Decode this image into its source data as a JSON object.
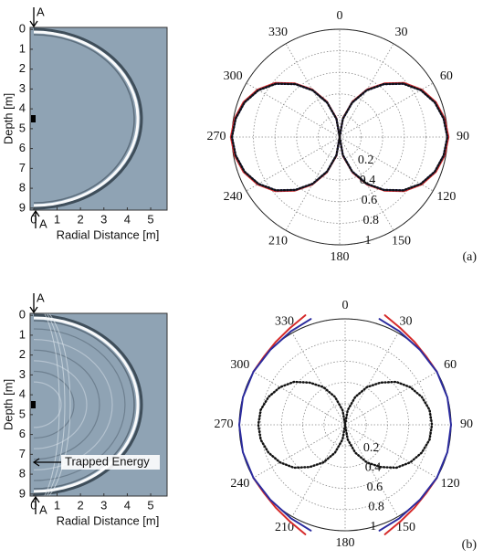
{
  "chart_data": [
    {
      "type": "image",
      "xlabel": "Radial Distance [m]",
      "ylabel": "Depth [m]",
      "xlim": [
        -0.15,
        5.7
      ],
      "ylim": [
        -0.1,
        9.1
      ],
      "xticks": [
        0,
        1,
        2,
        3,
        4,
        5
      ],
      "yticks": [
        0,
        1,
        2,
        3,
        4,
        5,
        6,
        7,
        8,
        9
      ],
      "markers": [
        "A",
        "A"
      ]
    },
    {
      "type": "polar",
      "panel_label": "(a)",
      "rlim": [
        0,
        1
      ],
      "rticks": [
        0.2,
        0.4,
        0.6,
        0.8,
        1
      ],
      "theta_ticks": [
        0,
        30,
        60,
        90,
        120,
        150,
        180,
        210,
        240,
        270,
        300,
        330
      ],
      "grid": true,
      "series": [
        {
          "color": "#d62b2b",
          "style": "solid",
          "theta": [
            0,
            10,
            20,
            30,
            40,
            50,
            60,
            70,
            80,
            90,
            100,
            110,
            120,
            130,
            140,
            150,
            160,
            170,
            180,
            190,
            200,
            210,
            220,
            230,
            240,
            250,
            260,
            270,
            280,
            290,
            300,
            310,
            320,
            330,
            340,
            350,
            360
          ],
          "r": [
            0,
            0.18,
            0.35,
            0.51,
            0.65,
            0.78,
            0.88,
            0.95,
            0.99,
            1.01,
            0.99,
            0.95,
            0.88,
            0.78,
            0.65,
            0.51,
            0.35,
            0.18,
            0,
            0.18,
            0.35,
            0.51,
            0.65,
            0.78,
            0.88,
            0.95,
            0.99,
            1.01,
            0.99,
            0.95,
            0.88,
            0.78,
            0.65,
            0.51,
            0.35,
            0.18,
            0
          ]
        },
        {
          "color": "#2b2b9e",
          "style": "solid",
          "theta": [
            0,
            10,
            20,
            30,
            40,
            50,
            60,
            70,
            80,
            90,
            100,
            110,
            120,
            130,
            140,
            150,
            160,
            170,
            180,
            190,
            200,
            210,
            220,
            230,
            240,
            250,
            260,
            270,
            280,
            290,
            300,
            310,
            320,
            330,
            340,
            350,
            360
          ],
          "r": [
            0,
            0.17,
            0.34,
            0.5,
            0.64,
            0.77,
            0.87,
            0.94,
            0.98,
            1,
            0.98,
            0.94,
            0.87,
            0.77,
            0.64,
            0.5,
            0.34,
            0.17,
            0,
            0.17,
            0.34,
            0.5,
            0.64,
            0.77,
            0.87,
            0.94,
            0.98,
            1,
            0.98,
            0.94,
            0.87,
            0.77,
            0.64,
            0.5,
            0.34,
            0.17,
            0
          ]
        },
        {
          "color": "#111111",
          "style": "dotted",
          "theta": [
            0,
            10,
            20,
            30,
            40,
            50,
            60,
            70,
            80,
            90,
            100,
            110,
            120,
            130,
            140,
            150,
            160,
            170,
            180,
            190,
            200,
            210,
            220,
            230,
            240,
            250,
            260,
            270,
            280,
            290,
            300,
            310,
            320,
            330,
            340,
            350,
            360
          ],
          "r": [
            0,
            0.17,
            0.34,
            0.5,
            0.64,
            0.77,
            0.87,
            0.94,
            0.98,
            1,
            0.98,
            0.94,
            0.87,
            0.77,
            0.64,
            0.5,
            0.34,
            0.17,
            0,
            0.17,
            0.34,
            0.5,
            0.64,
            0.77,
            0.87,
            0.94,
            0.98,
            1,
            0.98,
            0.94,
            0.87,
            0.77,
            0.64,
            0.5,
            0.34,
            0.17,
            0
          ]
        }
      ]
    },
    {
      "type": "image",
      "xlabel": "Radial Distance [m]",
      "ylabel": "Depth [m]",
      "xlim": [
        -0.15,
        5.7
      ],
      "ylim": [
        -0.1,
        9.1
      ],
      "xticks": [
        0,
        1,
        2,
        3,
        4,
        5
      ],
      "yticks": [
        0,
        1,
        2,
        3,
        4,
        5,
        6,
        7,
        8,
        9
      ],
      "markers": [
        "A",
        "A"
      ],
      "annotation": "Trapped Energy"
    },
    {
      "type": "polar",
      "panel_label": "(b)",
      "rlim": [
        0,
        1
      ],
      "rticks": [
        0.2,
        0.4,
        0.6,
        0.8,
        1
      ],
      "theta_ticks": [
        0,
        30,
        60,
        90,
        120,
        150,
        180,
        210,
        240,
        270,
        300,
        330
      ],
      "grid": true,
      "series": [
        {
          "color": "#111111",
          "style": "dotted",
          "theta": [
            0,
            10,
            20,
            30,
            40,
            50,
            60,
            70,
            80,
            90,
            100,
            110,
            120,
            130,
            140,
            150,
            160,
            170,
            180,
            190,
            200,
            210,
            220,
            230,
            240,
            250,
            260,
            270,
            280,
            290,
            300,
            310,
            320,
            330,
            340,
            350,
            360
          ],
          "r": [
            0,
            0.14,
            0.28,
            0.41,
            0.52,
            0.63,
            0.71,
            0.77,
            0.81,
            0.82,
            0.81,
            0.77,
            0.71,
            0.63,
            0.52,
            0.41,
            0.28,
            0.14,
            0,
            0.14,
            0.28,
            0.41,
            0.52,
            0.63,
            0.71,
            0.77,
            0.81,
            0.82,
            0.81,
            0.77,
            0.71,
            0.63,
            0.52,
            0.41,
            0.28,
            0.14,
            0
          ]
        },
        {
          "color": "#d62b2b",
          "style": "solid",
          "theta": [
            20,
            30,
            40,
            50,
            60
          ],
          "r": [
            1.1,
            1.05,
            1.02,
            1.0,
            1.0
          ]
        },
        {
          "color": "#d62b2b",
          "style": "solid",
          "theta": [
            120,
            130,
            140,
            150,
            160
          ],
          "r": [
            1.0,
            1.0,
            1.02,
            1.05,
            1.1
          ]
        },
        {
          "color": "#d62b2b",
          "style": "solid",
          "theta": [
            200,
            210,
            220,
            230,
            240
          ],
          "r": [
            1.1,
            1.05,
            1.02,
            1.0,
            1.0
          ]
        },
        {
          "color": "#d62b2b",
          "style": "solid",
          "theta": [
            300,
            310,
            320,
            330,
            340
          ],
          "r": [
            1.0,
            1.0,
            1.02,
            1.05,
            1.1
          ]
        },
        {
          "color": "#2b2b9e",
          "style": "solid",
          "theta": [
            18,
            30,
            45,
            60,
            75,
            90,
            105,
            120,
            135,
            150,
            162
          ],
          "r": [
            1.05,
            1.02,
            1.0,
            1.0,
            1.0,
            1.0,
            1.0,
            1.0,
            1.0,
            1.02,
            1.05
          ]
        },
        {
          "color": "#2b2b9e",
          "style": "solid",
          "theta": [
            198,
            210,
            225,
            240,
            255,
            270,
            285,
            300,
            315,
            330,
            342
          ],
          "r": [
            1.05,
            1.02,
            1.0,
            1.0,
            1.0,
            1.0,
            1.0,
            1.0,
            1.0,
            1.02,
            1.05
          ]
        }
      ]
    }
  ]
}
